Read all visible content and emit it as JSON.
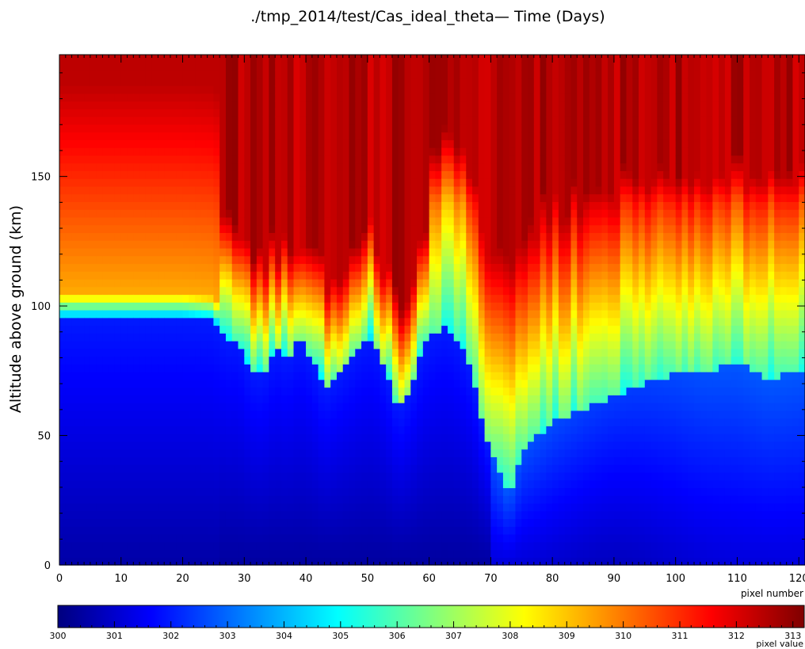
{
  "chart_data": {
    "type": "heatmap",
    "title": "./tmp_2014/test/Cas_ideal_theta— Time (Days)",
    "xlabel": "pixel number",
    "ylabel": "Altitude above ground (km)",
    "xlim": [
      0,
      121
    ],
    "ylim": [
      0,
      197
    ],
    "x_ticks": [
      0,
      10,
      20,
      30,
      40,
      50,
      60,
      70,
      80,
      90,
      100,
      110,
      120
    ],
    "y_ticks": [
      0,
      50,
      100,
      150
    ],
    "colorbar": {
      "label": "pixel value",
      "range": [
        300,
        313.2
      ],
      "ticks": [
        300,
        301,
        302,
        303,
        304,
        305,
        306,
        307,
        308,
        309,
        310,
        311,
        312,
        313
      ],
      "colormap": "jet"
    },
    "columns_approx": {
      "note_x": "pixel number",
      "x": [
        0,
        20,
        25,
        27,
        29,
        31,
        33,
        35,
        37,
        39,
        41,
        43,
        45,
        47,
        49,
        51,
        53,
        55,
        57,
        59,
        61,
        63,
        65,
        67,
        69,
        71,
        73,
        75,
        80,
        85,
        90,
        95,
        100,
        105,
        110,
        115,
        121
      ],
      "boundary_altitude_km": [
        96,
        96,
        95,
        87,
        88,
        76,
        73,
        84,
        80,
        87,
        80,
        67,
        73,
        79,
        86,
        88,
        76,
        60,
        68,
        84,
        90,
        92,
        86,
        75,
        50,
        40,
        25,
        45,
        55,
        60,
        65,
        70,
        74,
        75,
        78,
        72,
        76
      ]
    }
  }
}
